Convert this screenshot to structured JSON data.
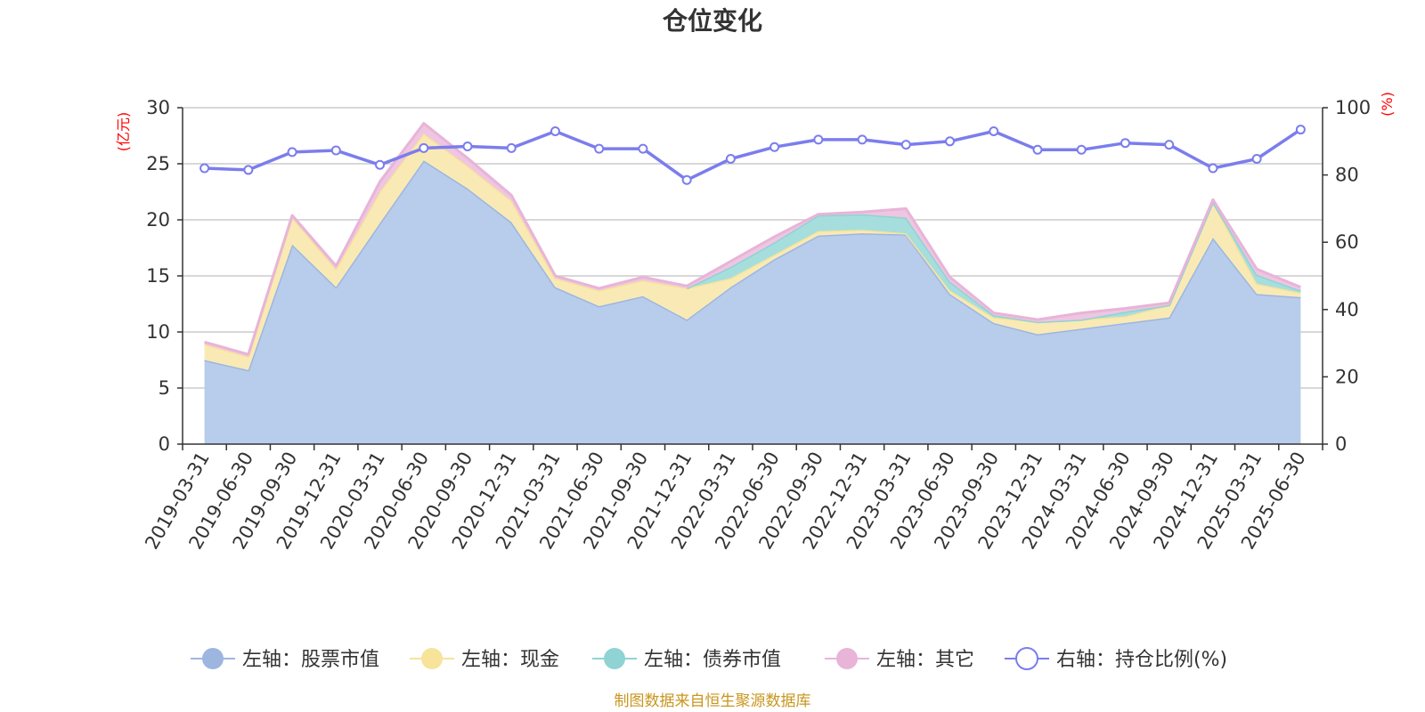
{
  "chart_data": {
    "type": "area",
    "title": "仓位变化",
    "left_axis_unit": "(亿元)",
    "right_axis_unit": "(%)",
    "left_ylim": [
      0,
      30
    ],
    "left_ticks": [
      "0",
      "5",
      "10",
      "15",
      "20",
      "25",
      "30"
    ],
    "right_ylim": [
      0,
      100
    ],
    "right_ticks": [
      "0",
      "20",
      "40",
      "60",
      "80",
      "100"
    ],
    "grid": true,
    "legend_position": "bottom",
    "categories": [
      "2019-03-31",
      "2019-06-30",
      "2019-09-30",
      "2019-12-31",
      "2020-03-31",
      "2020-06-30",
      "2020-09-30",
      "2020-12-31",
      "2021-03-31",
      "2021-06-30",
      "2021-09-30",
      "2021-12-31",
      "2022-03-31",
      "2022-06-30",
      "2022-09-30",
      "2022-12-31",
      "2023-03-31",
      "2023-06-30",
      "2023-09-30",
      "2023-12-31",
      "2024-03-31",
      "2024-06-30",
      "2024-09-30",
      "2024-12-31",
      "2025-03-31",
      "2025-06-30"
    ],
    "series": [
      {
        "name": "左轴：股票市值",
        "axis": "left",
        "kind": "area",
        "color": "#9db6e0",
        "fill": "#b8cceb",
        "values": [
          7.5,
          6.6,
          17.8,
          14.0,
          19.7,
          25.3,
          22.8,
          19.8,
          14.0,
          12.3,
          13.2,
          11.1,
          14.0,
          16.5,
          18.6,
          18.8,
          18.7,
          13.4,
          10.8,
          9.8,
          10.3,
          10.8,
          11.3,
          18.4,
          13.4,
          13.1
        ]
      },
      {
        "name": "左轴：现金",
        "axis": "left",
        "kind": "area",
        "color": "#f7e39a",
        "fill": "#f9eab5",
        "values": [
          1.4,
          1.2,
          2.4,
          1.6,
          2.8,
          2.4,
          2.0,
          1.9,
          0.8,
          1.4,
          1.4,
          2.8,
          0.8,
          0.4,
          0.4,
          0.3,
          0.1,
          0.3,
          0.5,
          1.1,
          0.8,
          0.6,
          1.1,
          3.2,
          0.9,
          0.4
        ]
      },
      {
        "name": "左轴：债券市值",
        "axis": "left",
        "kind": "area",
        "color": "#8fd3d4",
        "fill": "#a6dede",
        "values": [
          0,
          0,
          0,
          0,
          0,
          0,
          0,
          0,
          0,
          0,
          0,
          0,
          1.0,
          1.1,
          1.4,
          1.4,
          1.4,
          0.8,
          0.2,
          0,
          0,
          0.4,
          0,
          0,
          0.8,
          0.2
        ]
      },
      {
        "name": "左轴：其它",
        "axis": "left",
        "kind": "area",
        "color": "#e8b4d8",
        "fill": "#eec6e1",
        "values": [
          0.2,
          0.2,
          0.2,
          0.3,
          0.9,
          0.9,
          0.7,
          0.5,
          0.2,
          0.2,
          0.3,
          0.2,
          0.5,
          0.5,
          0.1,
          0.2,
          0.8,
          0.4,
          0.2,
          0.2,
          0.6,
          0.3,
          0.2,
          0.2,
          0.5,
          0.3
        ]
      },
      {
        "name": "右轴：持仓比例(%)",
        "axis": "right",
        "kind": "line",
        "color": "#7b7ded",
        "values": [
          82.0,
          81.5,
          86.8,
          87.3,
          83.0,
          88.0,
          88.5,
          88.0,
          93.0,
          87.8,
          87.8,
          78.5,
          84.8,
          88.3,
          90.5,
          90.5,
          89.0,
          90.0,
          93.0,
          87.5,
          87.5,
          89.5,
          89.0,
          82.0,
          84.8,
          93.5
        ]
      }
    ]
  },
  "source_note": "制图数据来自恒生聚源数据库"
}
